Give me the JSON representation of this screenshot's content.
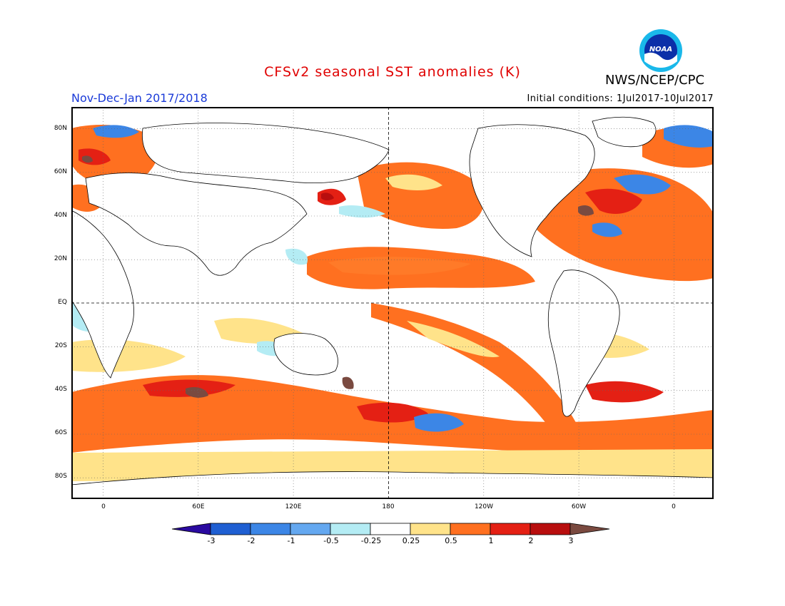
{
  "header": {
    "title": "CFSv2 seasonal SST anomalies (K)",
    "period": "Nov-Dec-Jan 2017/2018",
    "agency": "NWS/NCEP/CPC",
    "initial_conditions": "Initial conditions: 1Jul2017-10Jul2017",
    "logo_text": "NOAA"
  },
  "axes": {
    "lat_labels": [
      "80N",
      "60N",
      "40N",
      "20N",
      "EQ",
      "20S",
      "40S",
      "60S",
      "80S"
    ],
    "lon_labels": [
      "0",
      "60E",
      "120E",
      "180",
      "120W",
      "60W",
      "0"
    ]
  },
  "colorbar": {
    "labels": [
      "-3",
      "-2",
      "-1",
      "-0.5",
      "-0.25",
      "0.25",
      "0.5",
      "1",
      "2",
      "3"
    ],
    "colors": [
      "#2a0aa0",
      "#1f5fd2",
      "#3c86e6",
      "#64a8f0",
      "#b4ecf4",
      "#ffffff",
      "#ffe38a",
      "#ff7020",
      "#e42014",
      "#b80e0e",
      "#7a4a40"
    ]
  },
  "colors": {
    "land": "#ffffff",
    "coast": "#000000",
    "title": "#e00000",
    "period": "#1a3ad8"
  }
}
